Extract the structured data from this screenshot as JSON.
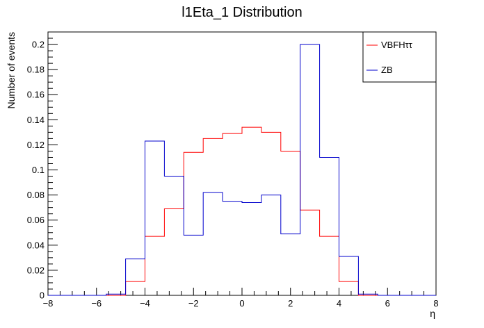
{
  "chart_data": {
    "type": "histogram",
    "title": "l1Eta_1 Distribution",
    "xlabel": "η",
    "ylabel": "Number of events",
    "xlim": [
      -8,
      8
    ],
    "ylim": [
      0,
      0.21
    ],
    "xticks": [
      -8,
      -6,
      -4,
      -2,
      0,
      2,
      4,
      6,
      8
    ],
    "yticks": [
      0,
      0.02,
      0.04,
      0.06,
      0.08,
      0.1,
      0.12,
      0.14,
      0.16,
      0.18,
      0.2
    ],
    "grid": false,
    "legend_position": "top-right",
    "bin_edges": [
      -8,
      -7.2,
      -6.4,
      -5.6,
      -4.8,
      -4,
      -3.2,
      -2.4,
      -1.6,
      -0.8,
      0,
      0.8,
      1.6,
      2.4,
      3.2,
      4,
      4.8,
      5.6,
      6.4,
      7.2,
      8
    ],
    "series": [
      {
        "name": "VBFHττ",
        "color": "#ff0000",
        "values": [
          0,
          0,
          0,
          0,
          0.011,
          0.047,
          0.069,
          0.114,
          0.125,
          0.129,
          0.134,
          0.13,
          0.115,
          0.068,
          0.047,
          0.011,
          0,
          0,
          0,
          0
        ]
      },
      {
        "name": "ZB",
        "color": "#0000cc",
        "values": [
          0,
          0,
          0,
          0.001,
          0.029,
          0.123,
          0.095,
          0.048,
          0.082,
          0.075,
          0.074,
          0.08,
          0.049,
          0.2,
          0.11,
          0.031,
          0.001,
          0,
          0,
          0
        ]
      }
    ]
  }
}
